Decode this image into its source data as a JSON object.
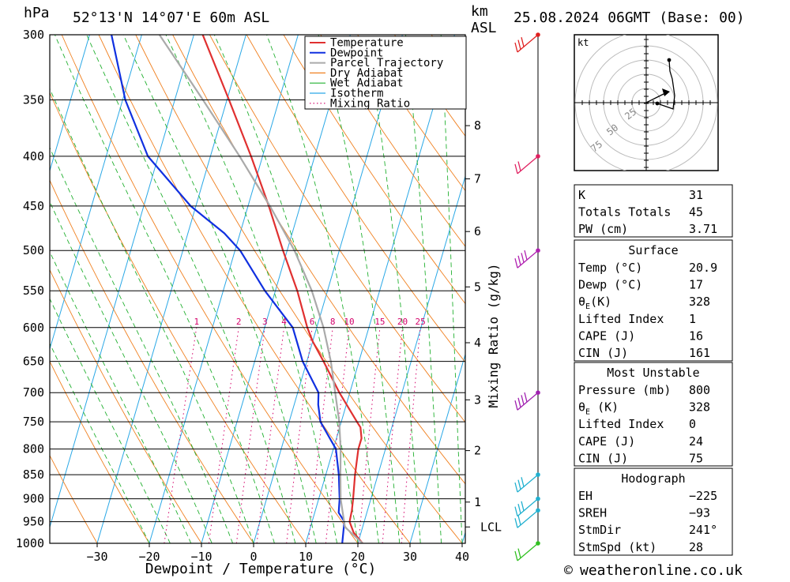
{
  "header": {
    "unit_hpa": "hPa",
    "location": "52°13'N 14°07'E 60m ASL",
    "unit_km": "km",
    "unit_asl": "ASL",
    "datetime": "25.08.2024 06GMT (Base: 00)"
  },
  "chart_data": {
    "type": "line",
    "title": "Skew-T log-P diagram",
    "xlabel": "Dewpoint / Temperature (°C)",
    "ylabel_right": "Mixing Ratio (g/kg)",
    "x_ticks": [
      -30,
      -20,
      -10,
      0,
      10,
      20,
      30,
      40
    ],
    "pressure_levels": [
      300,
      350,
      400,
      450,
      500,
      550,
      600,
      650,
      700,
      750,
      800,
      850,
      900,
      950,
      1000
    ],
    "height_km_ticks": [
      "8",
      "7",
      "6",
      "5",
      "4",
      "3",
      "2",
      "1",
      "LCL"
    ],
    "height_km_pressures": [
      372,
      422,
      478,
      545,
      622,
      712,
      803,
      907,
      962
    ],
    "mixing_ratio_labels": [
      "1",
      "2",
      "3",
      "4",
      "6",
      "8",
      "10",
      "15",
      "20",
      "25"
    ],
    "mixing_ratio_values": [
      1,
      2,
      3,
      4,
      6,
      8,
      10,
      15,
      20,
      25
    ],
    "legend": [
      "Temperature",
      "Dewpoint",
      "Parcel Trajectory",
      "Dry Adiabat",
      "Wet Adiabat",
      "Isotherm",
      "Mixing Ratio"
    ],
    "series": [
      {
        "name": "Temperature",
        "color": "#e03030",
        "points": [
          [
            1000,
            20.9
          ],
          [
            975,
            18.6
          ],
          [
            950,
            17.2
          ],
          [
            925,
            17.0
          ],
          [
            900,
            16.6
          ],
          [
            850,
            15.6
          ],
          [
            800,
            14.8
          ],
          [
            780,
            14.8
          ],
          [
            760,
            14.0
          ],
          [
            750,
            13.0
          ],
          [
            700,
            8.0
          ],
          [
            650,
            3.2
          ],
          [
            620,
            0.0
          ],
          [
            600,
            -1.8
          ],
          [
            550,
            -5.8
          ],
          [
            500,
            -10.8
          ],
          [
            450,
            -16.0
          ],
          [
            400,
            -22.2
          ],
          [
            350,
            -29.6
          ],
          [
            300,
            -38.3
          ]
        ]
      },
      {
        "name": "Dewpoint",
        "color": "#1030e0",
        "points": [
          [
            1000,
            17.0
          ],
          [
            950,
            16.2
          ],
          [
            930,
            14.6
          ],
          [
            900,
            14.0
          ],
          [
            850,
            12.5
          ],
          [
            800,
            10.5
          ],
          [
            750,
            6.0
          ],
          [
            720,
            4.6
          ],
          [
            700,
            4.0
          ],
          [
            650,
            -0.8
          ],
          [
            600,
            -4.6
          ],
          [
            550,
            -12.0
          ],
          [
            500,
            -19.0
          ],
          [
            480,
            -23.0
          ],
          [
            450,
            -31.0
          ],
          [
            400,
            -42.0
          ],
          [
            350,
            -49.5
          ],
          [
            300,
            -55.8
          ]
        ]
      },
      {
        "name": "Parcel Trajectory",
        "color": "#aaaaaa",
        "points": [
          [
            1000,
            20.9
          ],
          [
            962,
            16.6
          ],
          [
            900,
            14.2
          ],
          [
            850,
            12.8
          ],
          [
            800,
            11.4
          ],
          [
            750,
            9.6
          ],
          [
            700,
            7.2
          ],
          [
            650,
            4.6
          ],
          [
            600,
            1.3
          ],
          [
            550,
            -3.0
          ],
          [
            500,
            -8.6
          ],
          [
            450,
            -15.8
          ],
          [
            400,
            -24.4
          ],
          [
            350,
            -34.6
          ],
          [
            300,
            -46.6
          ]
        ]
      }
    ]
  },
  "hodograph": {
    "unit": "kt",
    "ring_labels": [
      "25",
      "50",
      "75"
    ]
  },
  "indices": {
    "top": [
      {
        "label": "K",
        "value": "31"
      },
      {
        "label": "Totals Totals",
        "value": "45"
      },
      {
        "label": "PW (cm)",
        "value": "3.71"
      }
    ],
    "surface": {
      "title": "Surface",
      "rows": [
        {
          "label": "Temp (°C)",
          "value": "20.9"
        },
        {
          "label": "Dewp (°C)",
          "value": "17"
        },
        {
          "label": "θE(K)",
          "value": "328"
        },
        {
          "label": "Lifted Index",
          "value": "1"
        },
        {
          "label": "CAPE (J)",
          "value": "16"
        },
        {
          "label": "CIN (J)",
          "value": "161"
        }
      ]
    },
    "unstable": {
      "title": "Most Unstable",
      "rows": [
        {
          "label": "Pressure (mb)",
          "value": "800"
        },
        {
          "label": "θE (K)",
          "value": "328"
        },
        {
          "label": "Lifted Index",
          "value": "0"
        },
        {
          "label": "CAPE (J)",
          "value": "24"
        },
        {
          "label": "CIN (J)",
          "value": "75"
        }
      ]
    },
    "hodo": {
      "title": "Hodograph",
      "rows": [
        {
          "label": "EH",
          "value": "-225"
        },
        {
          "label": "SREH",
          "value": "-93"
        },
        {
          "label": "StmDir",
          "value": "241°"
        },
        {
          "label": "StmSpd (kt)",
          "value": "28"
        }
      ]
    }
  },
  "wind_profile": {
    "levels": [
      {
        "p": 300,
        "color": "#e02020",
        "barbs": 3
      },
      {
        "p": 400,
        "color": "#e02060",
        "barbs": 2
      },
      {
        "p": 500,
        "color": "#b020b0",
        "barbs": 4
      },
      {
        "p": 700,
        "color": "#a020b0",
        "barbs": 4
      },
      {
        "p": 850,
        "color": "#20b0d0",
        "barbs": 3
      },
      {
        "p": 900,
        "color": "#20b0d0",
        "barbs": 3
      },
      {
        "p": 925,
        "color": "#20b0d0",
        "barbs": 2
      },
      {
        "p": 1000,
        "color": "#30c020",
        "barbs": 2
      }
    ]
  },
  "footer": {
    "copyright_symbol": "©",
    "site": "weatheronline.co.uk"
  }
}
